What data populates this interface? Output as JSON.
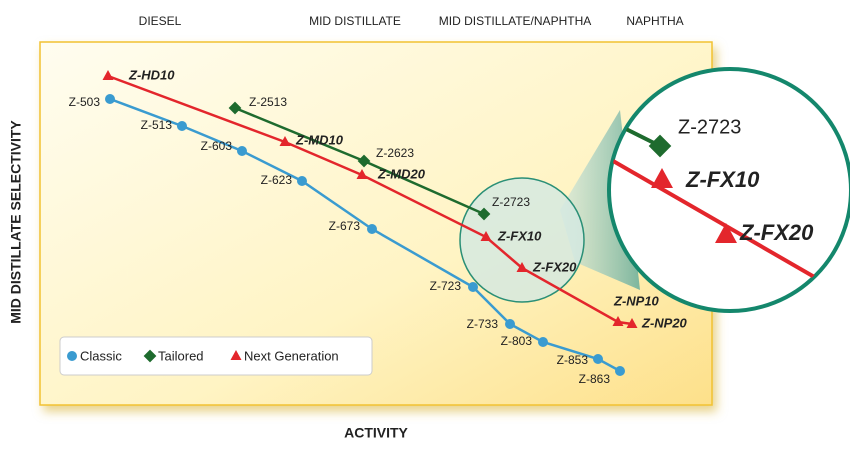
{
  "top_labels": [
    "DIESEL",
    "MID DISTILLATE",
    "MID DISTILLATE/NAPHTHA",
    "NAPHTHA"
  ],
  "y_axis_label": "MID DISTILLATE SELECTIVITY",
  "x_axis_label": "ACTIVITY",
  "series": [
    {
      "name": "Classic",
      "color": "#3a9bd0",
      "points": [
        "Z-503",
        "Z-513",
        "Z-603",
        "Z-623",
        "Z-673",
        "Z-723",
        "Z-733",
        "Z-803",
        "Z-853",
        "Z-863"
      ]
    },
    {
      "name": "Tailored",
      "color": "#1e6b2e",
      "points": [
        "Z-2513",
        "Z-2623",
        "Z-2723"
      ]
    },
    {
      "name": "Next Generation",
      "color": "#e3262c",
      "points": [
        "Z-HD10",
        "Z-MD10",
        "Z-MD20",
        "Z-FX10",
        "Z-FX20",
        "Z-NP10",
        "Z-NP20"
      ]
    }
  ]
}
